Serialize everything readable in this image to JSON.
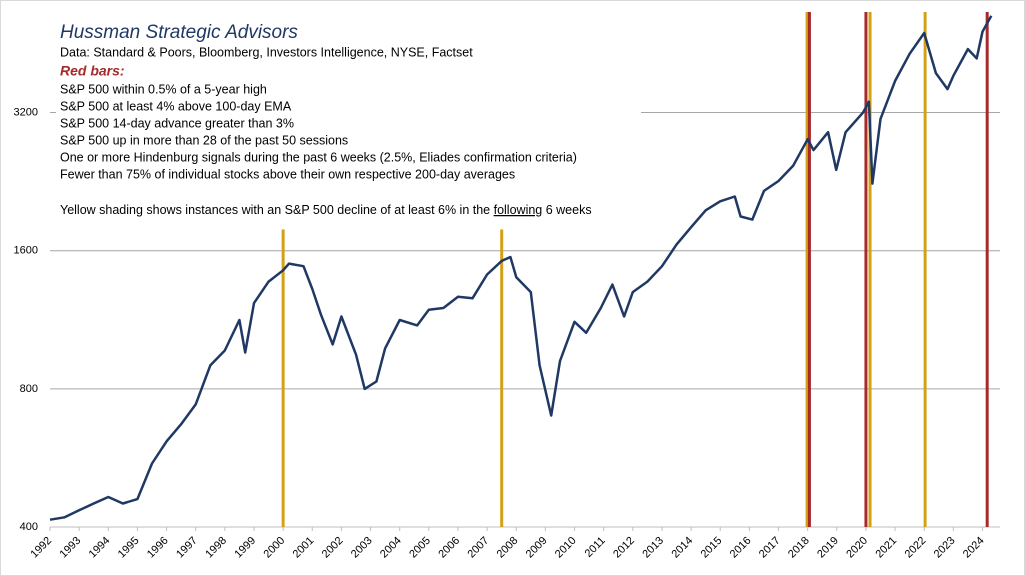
{
  "chart_data": {
    "type": "line",
    "title": "Hussman Strategic Advisors",
    "subtitle": "Data: Standard & Poors, Bloomberg, Investors Intelligence, NYSE, Factset",
    "legend_heading": "Red bars:",
    "legend_lines": [
      "S&P 500 within 0.5% of a 5-year high",
      "S&P 500 at least 4% above 100-day EMA",
      "S&P 500 14-day advance greater than 3%",
      "S&P 500 up in more than 28 of the past 50 sessions",
      "One or more Hindenburg signals during the past 6 weeks (2.5%, Eliades confirmation criteria)",
      "Fewer than 75% of individual stocks above their own respective 200-day averages"
    ],
    "note": {
      "before": "Yellow shading shows instances with an S&P 500 decline of at least 6% in the ",
      "underlined": "following",
      "after": " 6 weeks"
    },
    "log_y": true,
    "grid": true,
    "xlim": [
      1992,
      2024.6
    ],
    "ylim": [
      400,
      5300
    ],
    "xticks": [
      1992,
      1993,
      1994,
      1995,
      1996,
      1997,
      1998,
      1999,
      2000,
      2001,
      2002,
      2003,
      2004,
      2005,
      2006,
      2007,
      2008,
      2009,
      2010,
      2011,
      2012,
      2013,
      2014,
      2015,
      2016,
      2017,
      2018,
      2019,
      2020,
      2021,
      2022,
      2023,
      2024
    ],
    "yticks": [
      400,
      800,
      1600,
      3200
    ],
    "x": [
      1992.0,
      1992.5,
      1993.0,
      1993.5,
      1994.0,
      1994.5,
      1995.0,
      1995.5,
      1996.0,
      1996.5,
      1997.0,
      1997.5,
      1998.0,
      1998.5,
      1998.7,
      1999.0,
      1999.5,
      2000.0,
      2000.2,
      2000.7,
      2001.0,
      2001.3,
      2001.7,
      2002.0,
      2002.5,
      2002.8,
      2003.2,
      2003.5,
      2004.0,
      2004.6,
      2005.0,
      2005.5,
      2006.0,
      2006.5,
      2007.0,
      2007.5,
      2007.8,
      2008.0,
      2008.5,
      2008.8,
      2009.2,
      2009.5,
      2010.0,
      2010.4,
      2010.9,
      2011.3,
      2011.7,
      2012.0,
      2012.5,
      2013.0,
      2013.5,
      2014.0,
      2014.5,
      2015.0,
      2015.5,
      2015.7,
      2016.1,
      2016.5,
      2017.0,
      2017.5,
      2018.0,
      2018.2,
      2018.7,
      2018.98,
      2019.3,
      2019.9,
      2020.1,
      2020.22,
      2020.5,
      2021.0,
      2021.5,
      2022.0,
      2022.4,
      2022.8,
      2023.0,
      2023.5,
      2023.8,
      2024.0,
      2024.3
    ],
    "series": [
      {
        "name": "S&P 500",
        "color": "#1f3864",
        "values": [
          415,
          420,
          435,
          450,
          465,
          450,
          460,
          550,
          615,
          670,
          740,
          900,
          970,
          1130,
          960,
          1230,
          1370,
          1450,
          1500,
          1480,
          1320,
          1160,
          1000,
          1150,
          950,
          800,
          830,
          980,
          1130,
          1100,
          1190,
          1200,
          1270,
          1260,
          1420,
          1520,
          1550,
          1400,
          1300,
          900,
          700,
          920,
          1120,
          1060,
          1200,
          1350,
          1150,
          1300,
          1370,
          1480,
          1650,
          1800,
          1960,
          2050,
          2100,
          1900,
          1870,
          2160,
          2270,
          2450,
          2800,
          2650,
          2900,
          2400,
          2900,
          3200,
          3380,
          2240,
          3100,
          3750,
          4300,
          4770,
          3900,
          3600,
          3850,
          4400,
          4200,
          4800,
          5200
        ]
      }
    ],
    "bars": [
      {
        "x": 2000.0,
        "top": 1780,
        "color": "#d4a017"
      },
      {
        "x": 2007.5,
        "top": 1780,
        "color": "#d4a017"
      },
      {
        "x": 2017.98,
        "top": 5300,
        "color": "#d4a017"
      },
      {
        "x": 2018.06,
        "top": 5300,
        "color": "#a52a2a"
      },
      {
        "x": 2020.0,
        "top": 5300,
        "color": "#a52a2a"
      },
      {
        "x": 2020.14,
        "top": 5300,
        "color": "#d4a017"
      },
      {
        "x": 2022.03,
        "top": 5300,
        "color": "#d4a017"
      },
      {
        "x": 2024.16,
        "top": 5300,
        "color": "#a52a2a"
      }
    ]
  }
}
